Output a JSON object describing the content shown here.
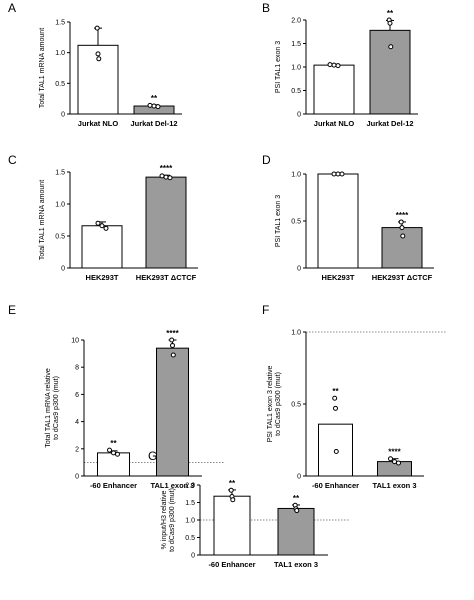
{
  "colors": {
    "open_bar": "#ffffff",
    "filled_bar": "#9b9b9b",
    "stroke": "#000000",
    "reference_line": "#666666"
  },
  "chart_data": [
    {
      "panel": "A",
      "type": "bar",
      "ylabel": "Total TAL1 mRNA amount",
      "ylim": [
        0,
        1.5
      ],
      "yticks": [
        0,
        0.5,
        1.0,
        1.5
      ],
      "categories": [
        "Jurkat NLO",
        "Jurkat Del-12"
      ],
      "values": [
        1.12,
        0.13
      ],
      "errors": [
        0.28,
        0.02
      ],
      "fills": [
        "open",
        "filled"
      ],
      "points": [
        [
          1.4,
          0.98,
          0.9
        ],
        [
          0.14,
          0.13,
          0.12
        ]
      ],
      "significance": [
        "",
        "**"
      ],
      "reference_line": null
    },
    {
      "panel": "B",
      "type": "bar",
      "ylabel": "PSI TAL1 exon 3",
      "ylim": [
        0,
        2.0
      ],
      "yticks": [
        0,
        0.5,
        1.0,
        1.5,
        2.0
      ],
      "categories": [
        "Jurkat NLO",
        "Jurkat Del-12"
      ],
      "values": [
        1.04,
        1.78
      ],
      "errors": [
        0.02,
        0.21
      ],
      "fills": [
        "open",
        "filled"
      ],
      "points": [
        [
          1.05,
          1.04,
          1.03
        ],
        [
          2.0,
          1.93,
          1.43
        ]
      ],
      "significance": [
        "",
        "**"
      ],
      "reference_line": null
    },
    {
      "panel": "C",
      "type": "bar",
      "ylabel": "Total TAL1 mRNA amount",
      "ylim": [
        0,
        1.5
      ],
      "yticks": [
        0,
        0.5,
        1.0,
        1.5
      ],
      "categories": [
        "HEK293T",
        "HEK293T ΔCTCF"
      ],
      "values": [
        0.66,
        1.42
      ],
      "errors": [
        0.06,
        0.03
      ],
      "fills": [
        "open",
        "filled"
      ],
      "points": [
        [
          0.7,
          0.66,
          0.62
        ],
        [
          1.44,
          1.42,
          1.41
        ]
      ],
      "significance": [
        "",
        "****"
      ],
      "reference_line": null
    },
    {
      "panel": "D",
      "type": "bar",
      "ylabel": "PSI TAL1 exon 3",
      "ylim": [
        0,
        1.0
      ],
      "yticks": [
        0,
        0.5,
        1.0
      ],
      "categories": [
        "HEK293T",
        "HEK293T ΔCTCF"
      ],
      "values": [
        1.0,
        0.43
      ],
      "errors": [
        0.0,
        0.06
      ],
      "fills": [
        "open",
        "filled"
      ],
      "points": [
        [
          1.0,
          1.0,
          1.0
        ],
        [
          0.49,
          0.43,
          0.34
        ]
      ],
      "significance": [
        "",
        "****"
      ],
      "reference_line": null
    },
    {
      "panel": "E",
      "type": "bar",
      "ylabel": "Total TAL1 mRNA relative\nto dCas9 p300 (mut)",
      "ylim": [
        0,
        10
      ],
      "yticks": [
        0,
        2,
        4,
        6,
        8,
        10
      ],
      "categories": [
        "-60 Enhancer",
        "TAL1 exon 3"
      ],
      "values": [
        1.7,
        9.4
      ],
      "errors": [
        0.15,
        0.6
      ],
      "fills": [
        "open",
        "filled"
      ],
      "points": [
        [
          1.9,
          1.7,
          1.6
        ],
        [
          10.0,
          9.6,
          8.9
        ]
      ],
      "significance": [
        "**",
        "****"
      ],
      "reference_line": 1.0
    },
    {
      "panel": "F",
      "type": "bar",
      "ylabel": "PSI TAL1 exon 3 relative\nto dCas9 p300 (mut)",
      "ylim": [
        0,
        1.0
      ],
      "yticks": [
        0,
        0.5,
        1.0
      ],
      "categories": [
        "-60 Enhancer",
        "TAL1 exon 3"
      ],
      "values": [
        0.36,
        0.1
      ],
      "errors": [
        0.0,
        0.02
      ],
      "fills": [
        "open",
        "filled"
      ],
      "points": [
        [
          0.54,
          0.47,
          0.17
        ],
        [
          0.12,
          0.1,
          0.09
        ]
      ],
      "significance": [
        "**",
        "****"
      ],
      "reference_line": 1.0
    },
    {
      "panel": "G",
      "type": "bar",
      "ylabel": "% input/H3 relative\nto dCas9 p300 (mut)",
      "ylim": [
        0,
        2.0
      ],
      "yticks": [
        0,
        0.5,
        1.0,
        1.5,
        2.0
      ],
      "categories": [
        "-60 Enhancer",
        "TAL1 exon 3"
      ],
      "values": [
        1.68,
        1.33
      ],
      "errors": [
        0.18,
        0.1
      ],
      "fills": [
        "open",
        "filled"
      ],
      "points": [
        [
          1.85,
          1.67,
          1.58
        ],
        [
          1.42,
          1.32,
          1.27
        ]
      ],
      "significance": [
        "**",
        "**"
      ],
      "reference_line": 1.0
    }
  ]
}
